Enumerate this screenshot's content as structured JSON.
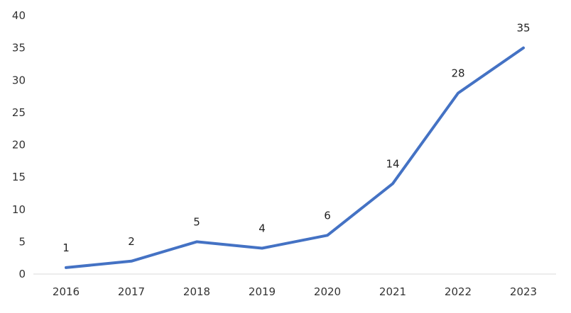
{
  "chart_data": {
    "type": "line",
    "title": "",
    "xlabel": "",
    "ylabel": "",
    "categories": [
      "2016",
      "2017",
      "2018",
      "2019",
      "2020",
      "2021",
      "2022",
      "2023"
    ],
    "series": [
      {
        "values": [
          1,
          2,
          5,
          4,
          6,
          14,
          28,
          35
        ],
        "color": "#4472c4"
      }
    ],
    "data_labels": [
      "1",
      "2",
      "5",
      "4",
      "6",
      "14",
      "28",
      "35"
    ],
    "y_ticks": [
      "0",
      "5",
      "10",
      "15",
      "20",
      "25",
      "30",
      "35",
      "40"
    ],
    "ylim": [
      0,
      40
    ],
    "grid": false,
    "legend": "none",
    "axis_color": "#d9d9d9"
  }
}
